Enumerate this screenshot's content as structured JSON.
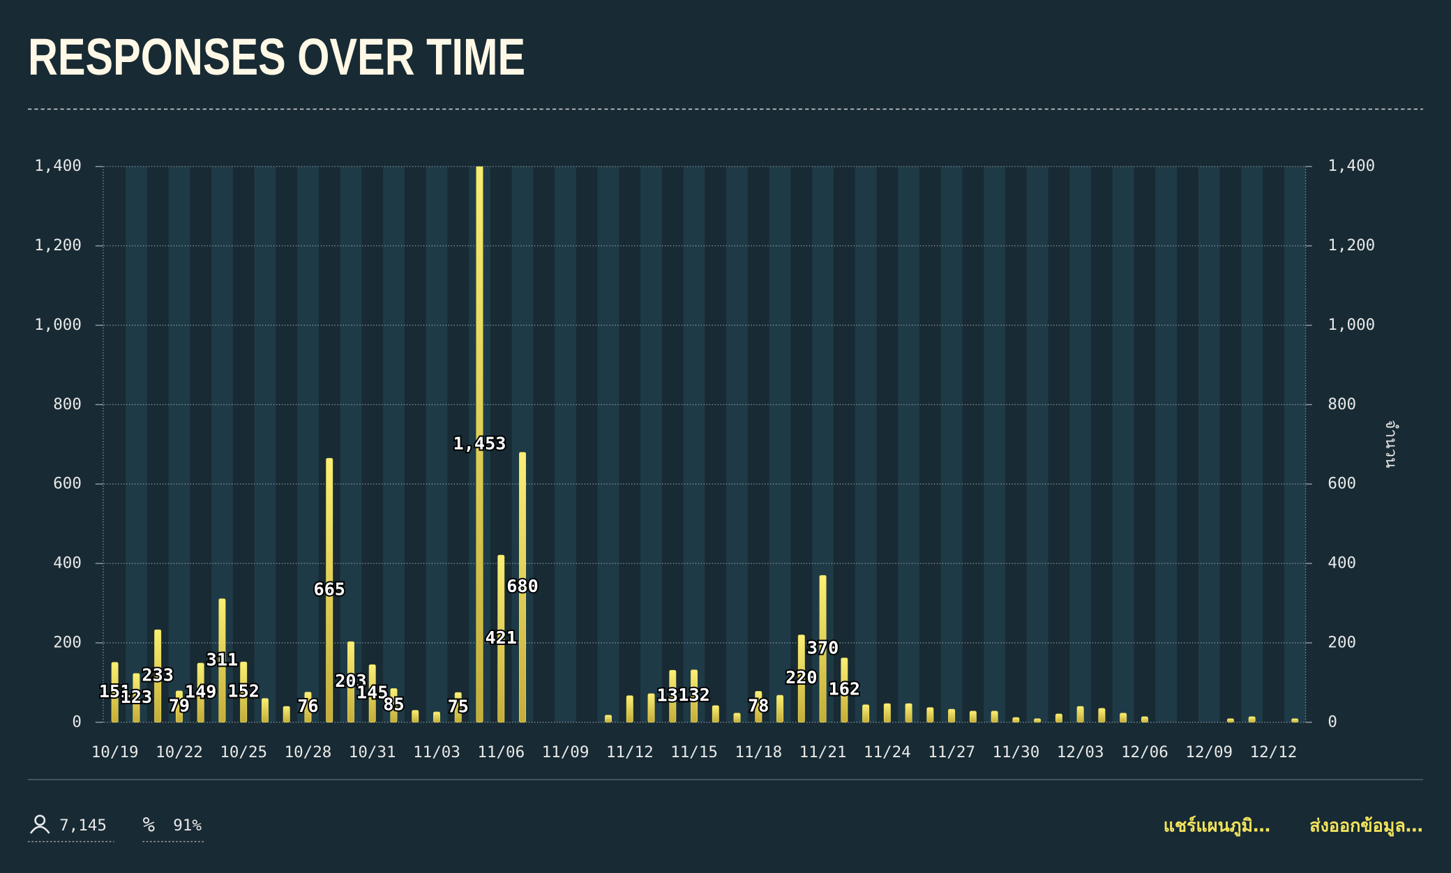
{
  "chart_data": {
    "type": "bar",
    "title": "RESPONSES OVER TIME",
    "y2_label": "จำนวน",
    "categories": [
      "10/19",
      null,
      null,
      "10/22",
      null,
      null,
      "10/25",
      null,
      null,
      "10/28",
      null,
      null,
      "10/31",
      null,
      null,
      "11/03",
      null,
      null,
      "11/06",
      null,
      null,
      "11/09",
      null,
      null,
      "11/12",
      null,
      null,
      "11/15",
      null,
      null,
      "11/18",
      null,
      null,
      "11/21",
      null,
      null,
      "11/24",
      null,
      null,
      "11/27",
      null,
      null,
      "11/30",
      null,
      null,
      "12/03",
      null,
      null,
      "12/06",
      null,
      null,
      "12/09",
      null,
      null,
      "12/12",
      null
    ],
    "values": [
      151,
      123,
      233,
      79,
      149,
      311,
      152,
      60,
      40,
      76,
      665,
      203,
      145,
      85,
      30,
      26,
      75,
      1453,
      421,
      680,
      0,
      0,
      0,
      18,
      67,
      72,
      131,
      132,
      42,
      23,
      78,
      68,
      220,
      370,
      162,
      44,
      47,
      47,
      37,
      33,
      28,
      28,
      12,
      9,
      21,
      40,
      35,
      23,
      14,
      0,
      0,
      0,
      9,
      14,
      0,
      9
    ],
    "value_labels": [
      "151",
      "123",
      "233",
      "79",
      "149",
      "311",
      "152",
      null,
      null,
      "76",
      "665",
      "203",
      "145",
      "85",
      null,
      null,
      "75",
      "1,453",
      "421",
      "680",
      null,
      null,
      null,
      null,
      null,
      null,
      "131",
      "132",
      null,
      null,
      "78",
      null,
      "220",
      "370",
      "162",
      null,
      null,
      null,
      null,
      null,
      null,
      null,
      null,
      null,
      null,
      null,
      null,
      null,
      null,
      null,
      null,
      null,
      null,
      null,
      null,
      null
    ],
    "color": "#f2e35c",
    "ylim": [
      0,
      1400
    ],
    "yticks": [
      0,
      200,
      400,
      600,
      800,
      {
        "value": 1000,
        "label": "1,000"
      },
      {
        "value": 1200,
        "label": "1,200"
      },
      {
        "value": 1400,
        "label": "1,400"
      }
    ],
    "y2lim": [
      0,
      1400
    ],
    "y2ticks": [
      0,
      200,
      400,
      600,
      800,
      {
        "value": 1000,
        "label": "1,000"
      },
      {
        "value": 1200,
        "label": "1,200"
      },
      {
        "value": 1400,
        "label": "1,400"
      }
    ],
    "grid": true
  },
  "footer": {
    "respondents": "7,145",
    "completion": "91%",
    "actions": [
      "แชร์แผนภูมิ…",
      "ส่งออกข้อมูล…"
    ]
  }
}
